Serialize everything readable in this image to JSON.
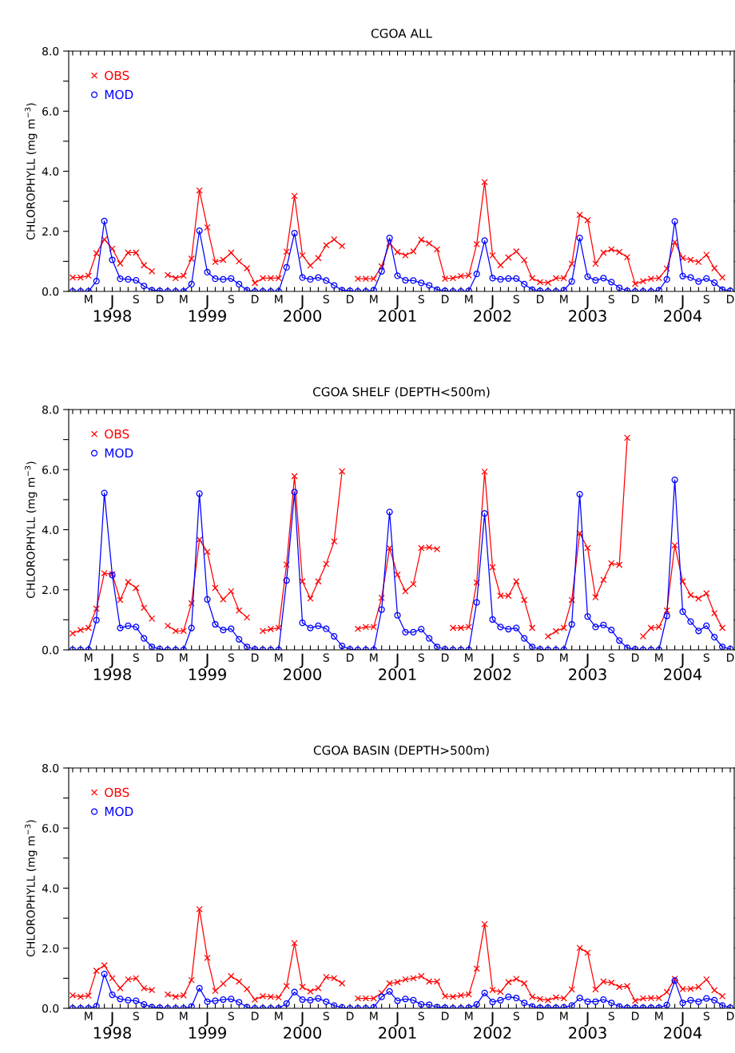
{
  "chart_data": [
    {
      "type": "line",
      "title": "CGOA ALL",
      "ylabel": "CHLOROPHYLL (mg m$^{−3}$)",
      "categories": [
        null,
        null,
        "M",
        null,
        null,
        "J\n1998",
        null,
        null,
        "S",
        null,
        null,
        "D",
        null,
        null,
        "M",
        null,
        null,
        "J\n1999",
        null,
        null,
        "S",
        null,
        null,
        "D",
        null,
        null,
        "M",
        null,
        null,
        "J\n2000",
        null,
        null,
        "S",
        null,
        null,
        "D",
        null,
        null,
        "M",
        null,
        null,
        "J\n2001",
        null,
        null,
        "S",
        null,
        null,
        "D",
        null,
        null,
        "M",
        null,
        null,
        "J\n2002",
        null,
        null,
        "S",
        null,
        null,
        "D",
        null,
        null,
        "M",
        null,
        null,
        "J\n2003",
        null,
        null,
        "S",
        null,
        null,
        "D",
        null,
        null,
        "M",
        null,
        null,
        "J\n2004",
        null,
        null,
        "S",
        null,
        null,
        "D"
      ],
      "ylim": [
        0,
        8
      ],
      "yticks": [
        {
          "value": 0,
          "label": "0.0"
        },
        {
          "value": 1,
          "label": null
        },
        {
          "value": 2,
          "label": "2.0"
        },
        {
          "value": 3,
          "label": null
        },
        {
          "value": 4,
          "label": "4.0"
        },
        {
          "value": 5,
          "label": null
        },
        {
          "value": 6,
          "label": "6.0"
        },
        {
          "value": 7,
          "label": null
        },
        {
          "value": 8,
          "label": "8.0"
        }
      ],
      "legend": "top left",
      "grid": false,
      "series": [
        {
          "name": "OBS",
          "color": "#ff0000",
          "marker": "cross",
          "values": [
            0.46,
            0.46,
            0.52,
            1.27,
            1.73,
            1.42,
            0.93,
            1.29,
            1.29,
            0.87,
            0.67,
            null,
            0.55,
            0.44,
            0.52,
            1.09,
            3.36,
            2.13,
            0.98,
            1.05,
            1.29,
            1.0,
            0.77,
            0.28,
            0.44,
            0.44,
            0.44,
            1.32,
            3.18,
            1.2,
            0.86,
            1.11,
            1.54,
            1.73,
            1.51,
            null,
            0.42,
            0.42,
            0.42,
            0.83,
            1.6,
            1.31,
            1.2,
            1.33,
            1.72,
            1.6,
            1.4,
            0.42,
            0.44,
            0.51,
            0.53,
            1.57,
            3.64,
            1.2,
            0.87,
            1.13,
            1.33,
            1.04,
            0.44,
            0.31,
            0.29,
            0.44,
            0.44,
            0.92,
            2.55,
            2.37,
            0.92,
            1.29,
            1.4,
            1.31,
            1.14,
            0.25,
            0.34,
            0.42,
            0.44,
            0.76,
            1.64,
            1.11,
            1.05,
            0.98,
            1.22,
            0.77,
            0.46,
            null
          ]
        },
        {
          "name": "MOD",
          "color": "#0000ff",
          "marker": "circle",
          "values": [
            0,
            0,
            0,
            0.34,
            2.34,
            1.05,
            0.42,
            0.4,
            0.37,
            0.18,
            0.04,
            0.02,
            0,
            0,
            0,
            0.24,
            2.02,
            0.64,
            0.42,
            0.4,
            0.43,
            0.24,
            0.04,
            0,
            0,
            0,
            0,
            0.8,
            1.94,
            0.46,
            0.4,
            0.46,
            0.36,
            0.2,
            0.04,
            0.02,
            0,
            0,
            0.04,
            0.67,
            1.78,
            0.52,
            0.37,
            0.36,
            0.28,
            0.2,
            0.06,
            0.02,
            0,
            0,
            0.02,
            0.58,
            1.69,
            0.44,
            0.4,
            0.43,
            0.43,
            0.24,
            0.06,
            0.02,
            0,
            0,
            0.04,
            0.33,
            1.78,
            0.49,
            0.37,
            0.44,
            0.31,
            0.12,
            0.02,
            0,
            0,
            0,
            0.04,
            0.4,
            2.33,
            0.51,
            0.46,
            0.33,
            0.43,
            0.29,
            0.06,
            0.02
          ]
        }
      ]
    },
    {
      "type": "line",
      "title": "CGOA SHELF (DEPTH<500m)",
      "ylabel": "CHLOROPHYLL (mg m$^{−3}$)",
      "categories": [
        null,
        null,
        "M",
        null,
        null,
        "J\n1998",
        null,
        null,
        "S",
        null,
        null,
        "D",
        null,
        null,
        "M",
        null,
        null,
        "J\n1999",
        null,
        null,
        "S",
        null,
        null,
        "D",
        null,
        null,
        "M",
        null,
        null,
        "J\n2000",
        null,
        null,
        "S",
        null,
        null,
        "D",
        null,
        null,
        "M",
        null,
        null,
        "J\n2001",
        null,
        null,
        "S",
        null,
        null,
        "D",
        null,
        null,
        "M",
        null,
        null,
        "J\n2002",
        null,
        null,
        "S",
        null,
        null,
        "D",
        null,
        null,
        "M",
        null,
        null,
        "J\n2003",
        null,
        null,
        "S",
        null,
        null,
        "D",
        null,
        null,
        "M",
        null,
        null,
        "J\n2004",
        null,
        null,
        "S",
        null,
        null,
        "D"
      ],
      "ylim": [
        0,
        8
      ],
      "yticks": [
        {
          "value": 0,
          "label": "0.0"
        },
        {
          "value": 1,
          "label": null
        },
        {
          "value": 2,
          "label": "2.0"
        },
        {
          "value": 3,
          "label": null
        },
        {
          "value": 4,
          "label": "4.0"
        },
        {
          "value": 5,
          "label": null
        },
        {
          "value": 6,
          "label": "6.0"
        },
        {
          "value": 7,
          "label": null
        },
        {
          "value": 8,
          "label": "8.0"
        }
      ],
      "legend": "top left",
      "grid": false,
      "series": [
        {
          "name": "OBS",
          "color": "#ff0000",
          "marker": "cross",
          "values": [
            0.55,
            0.66,
            0.73,
            1.37,
            2.55,
            2.52,
            1.66,
            2.26,
            2.06,
            1.4,
            1.04,
            null,
            0.8,
            0.63,
            0.63,
            1.55,
            3.67,
            3.26,
            2.06,
            1.68,
            1.95,
            1.31,
            1.08,
            null,
            0.63,
            0.69,
            0.73,
            2.84,
            5.78,
            2.28,
            1.71,
            2.28,
            2.86,
            3.61,
            5.94,
            null,
            0.7,
            0.76,
            0.76,
            1.73,
            3.39,
            2.5,
            1.95,
            2.19,
            3.39,
            3.41,
            3.35,
            null,
            0.73,
            0.73,
            0.76,
            2.24,
            5.93,
            2.75,
            1.8,
            1.8,
            2.28,
            1.66,
            0.73,
            null,
            0.45,
            0.62,
            0.73,
            1.66,
            3.88,
            3.39,
            1.75,
            2.33,
            2.88,
            2.83,
            7.06,
            null,
            0.45,
            0.73,
            0.76,
            1.31,
            3.48,
            2.28,
            1.82,
            1.71,
            1.88,
            1.22,
            0.73,
            null
          ]
        },
        {
          "name": "MOD",
          "color": "#0000ff",
          "marker": "circle",
          "values": [
            0,
            0,
            0,
            0.99,
            5.22,
            2.49,
            0.73,
            0.8,
            0.76,
            0.38,
            0.1,
            0.03,
            0,
            0,
            0,
            0.73,
            5.2,
            1.68,
            0.85,
            0.66,
            0.7,
            0.35,
            0.1,
            0.02,
            0,
            0,
            0,
            2.31,
            5.25,
            0.9,
            0.73,
            0.8,
            0.7,
            0.45,
            0.13,
            0.02,
            0,
            0,
            0,
            1.34,
            4.59,
            1.15,
            0.59,
            0.59,
            0.69,
            0.38,
            0.1,
            0.02,
            0,
            0,
            0,
            1.58,
            4.54,
            1.01,
            0.76,
            0.69,
            0.73,
            0.38,
            0.1,
            0.02,
            0,
            0,
            0,
            0.85,
            5.18,
            1.11,
            0.76,
            0.83,
            0.66,
            0.31,
            0.07,
            0.02,
            0,
            0,
            0,
            1.13,
            5.66,
            1.27,
            0.94,
            0.63,
            0.8,
            0.42,
            0.1,
            0.03
          ]
        }
      ]
    },
    {
      "type": "line",
      "title": "CGOA BASIN (DEPTH>500m)",
      "ylabel": "CHLOROPHYLL (mg m$^{−3}$)",
      "categories": [
        null,
        null,
        "M",
        null,
        null,
        "J\n1998",
        null,
        null,
        "S",
        null,
        null,
        "D",
        null,
        null,
        "M",
        null,
        null,
        "J\n1999",
        null,
        null,
        "S",
        null,
        null,
        "D",
        null,
        null,
        "M",
        null,
        null,
        "J\n2000",
        null,
        null,
        "S",
        null,
        null,
        "D",
        null,
        null,
        "M",
        null,
        null,
        "J\n2001",
        null,
        null,
        "S",
        null,
        null,
        "D",
        null,
        null,
        "M",
        null,
        null,
        "J\n2002",
        null,
        null,
        "S",
        null,
        null,
        "D",
        null,
        null,
        "M",
        null,
        null,
        "J\n2003",
        null,
        null,
        "S",
        null,
        null,
        "D",
        null,
        null,
        "M",
        null,
        null,
        "J\n2004",
        null,
        null,
        "S",
        null,
        null,
        "D"
      ],
      "ylim": [
        0,
        8
      ],
      "yticks": [
        {
          "value": 0,
          "label": "0.0"
        },
        {
          "value": 1,
          "label": null
        },
        {
          "value": 2,
          "label": "2.0"
        },
        {
          "value": 3,
          "label": null
        },
        {
          "value": 4,
          "label": "4.0"
        },
        {
          "value": 5,
          "label": null
        },
        {
          "value": 6,
          "label": "6.0"
        },
        {
          "value": 7,
          "label": null
        },
        {
          "value": 8,
          "label": "8.0"
        }
      ],
      "legend": "top left",
      "grid": false,
      "series": [
        {
          "name": "OBS",
          "color": "#ff0000",
          "marker": "cross",
          "values": [
            0.43,
            0.38,
            0.42,
            1.25,
            1.43,
            1.0,
            0.67,
            0.96,
            1.0,
            0.67,
            0.61,
            null,
            0.46,
            0.38,
            0.43,
            0.94,
            3.3,
            1.68,
            0.58,
            0.82,
            1.07,
            0.89,
            0.64,
            0.29,
            0.4,
            0.38,
            0.36,
            0.74,
            2.17,
            0.71,
            0.56,
            0.67,
            1.04,
            1.0,
            0.83,
            null,
            0.33,
            0.33,
            0.33,
            0.51,
            0.83,
            0.87,
            0.96,
            1.0,
            1.07,
            0.89,
            0.89,
            0.4,
            0.38,
            0.43,
            0.46,
            1.32,
            2.8,
            0.61,
            0.55,
            0.87,
            0.98,
            0.83,
            0.38,
            0.31,
            0.27,
            0.36,
            0.33,
            0.63,
            2.01,
            1.85,
            0.63,
            0.89,
            0.85,
            0.71,
            0.74,
            0.25,
            0.33,
            0.34,
            0.34,
            0.54,
            0.98,
            0.64,
            0.65,
            0.71,
            0.96,
            0.6,
            0.4,
            null
          ]
        },
        {
          "name": "MOD",
          "color": "#0000ff",
          "marker": "circle",
          "values": [
            0,
            0,
            0,
            0.07,
            1.14,
            0.45,
            0.31,
            0.27,
            0.25,
            0.13,
            0.04,
            0.02,
            0,
            0,
            0,
            0.06,
            0.67,
            0.22,
            0.25,
            0.29,
            0.31,
            0.2,
            0.04,
            0,
            0,
            0,
            0,
            0.16,
            0.54,
            0.29,
            0.27,
            0.33,
            0.22,
            0.09,
            0.03,
            0,
            0,
            0,
            0.03,
            0.38,
            0.56,
            0.25,
            0.31,
            0.27,
            0.13,
            0.12,
            0.04,
            0.02,
            0,
            0,
            0.02,
            0.13,
            0.51,
            0.21,
            0.27,
            0.38,
            0.34,
            0.18,
            0.06,
            0.02,
            0.02,
            0.02,
            0.03,
            0.09,
            0.34,
            0.22,
            0.22,
            0.29,
            0.18,
            0.06,
            0.02,
            0.02,
            0.02,
            0.02,
            0.02,
            0.11,
            0.92,
            0.18,
            0.27,
            0.22,
            0.33,
            0.27,
            0.09,
            0.02
          ]
        }
      ]
    }
  ]
}
